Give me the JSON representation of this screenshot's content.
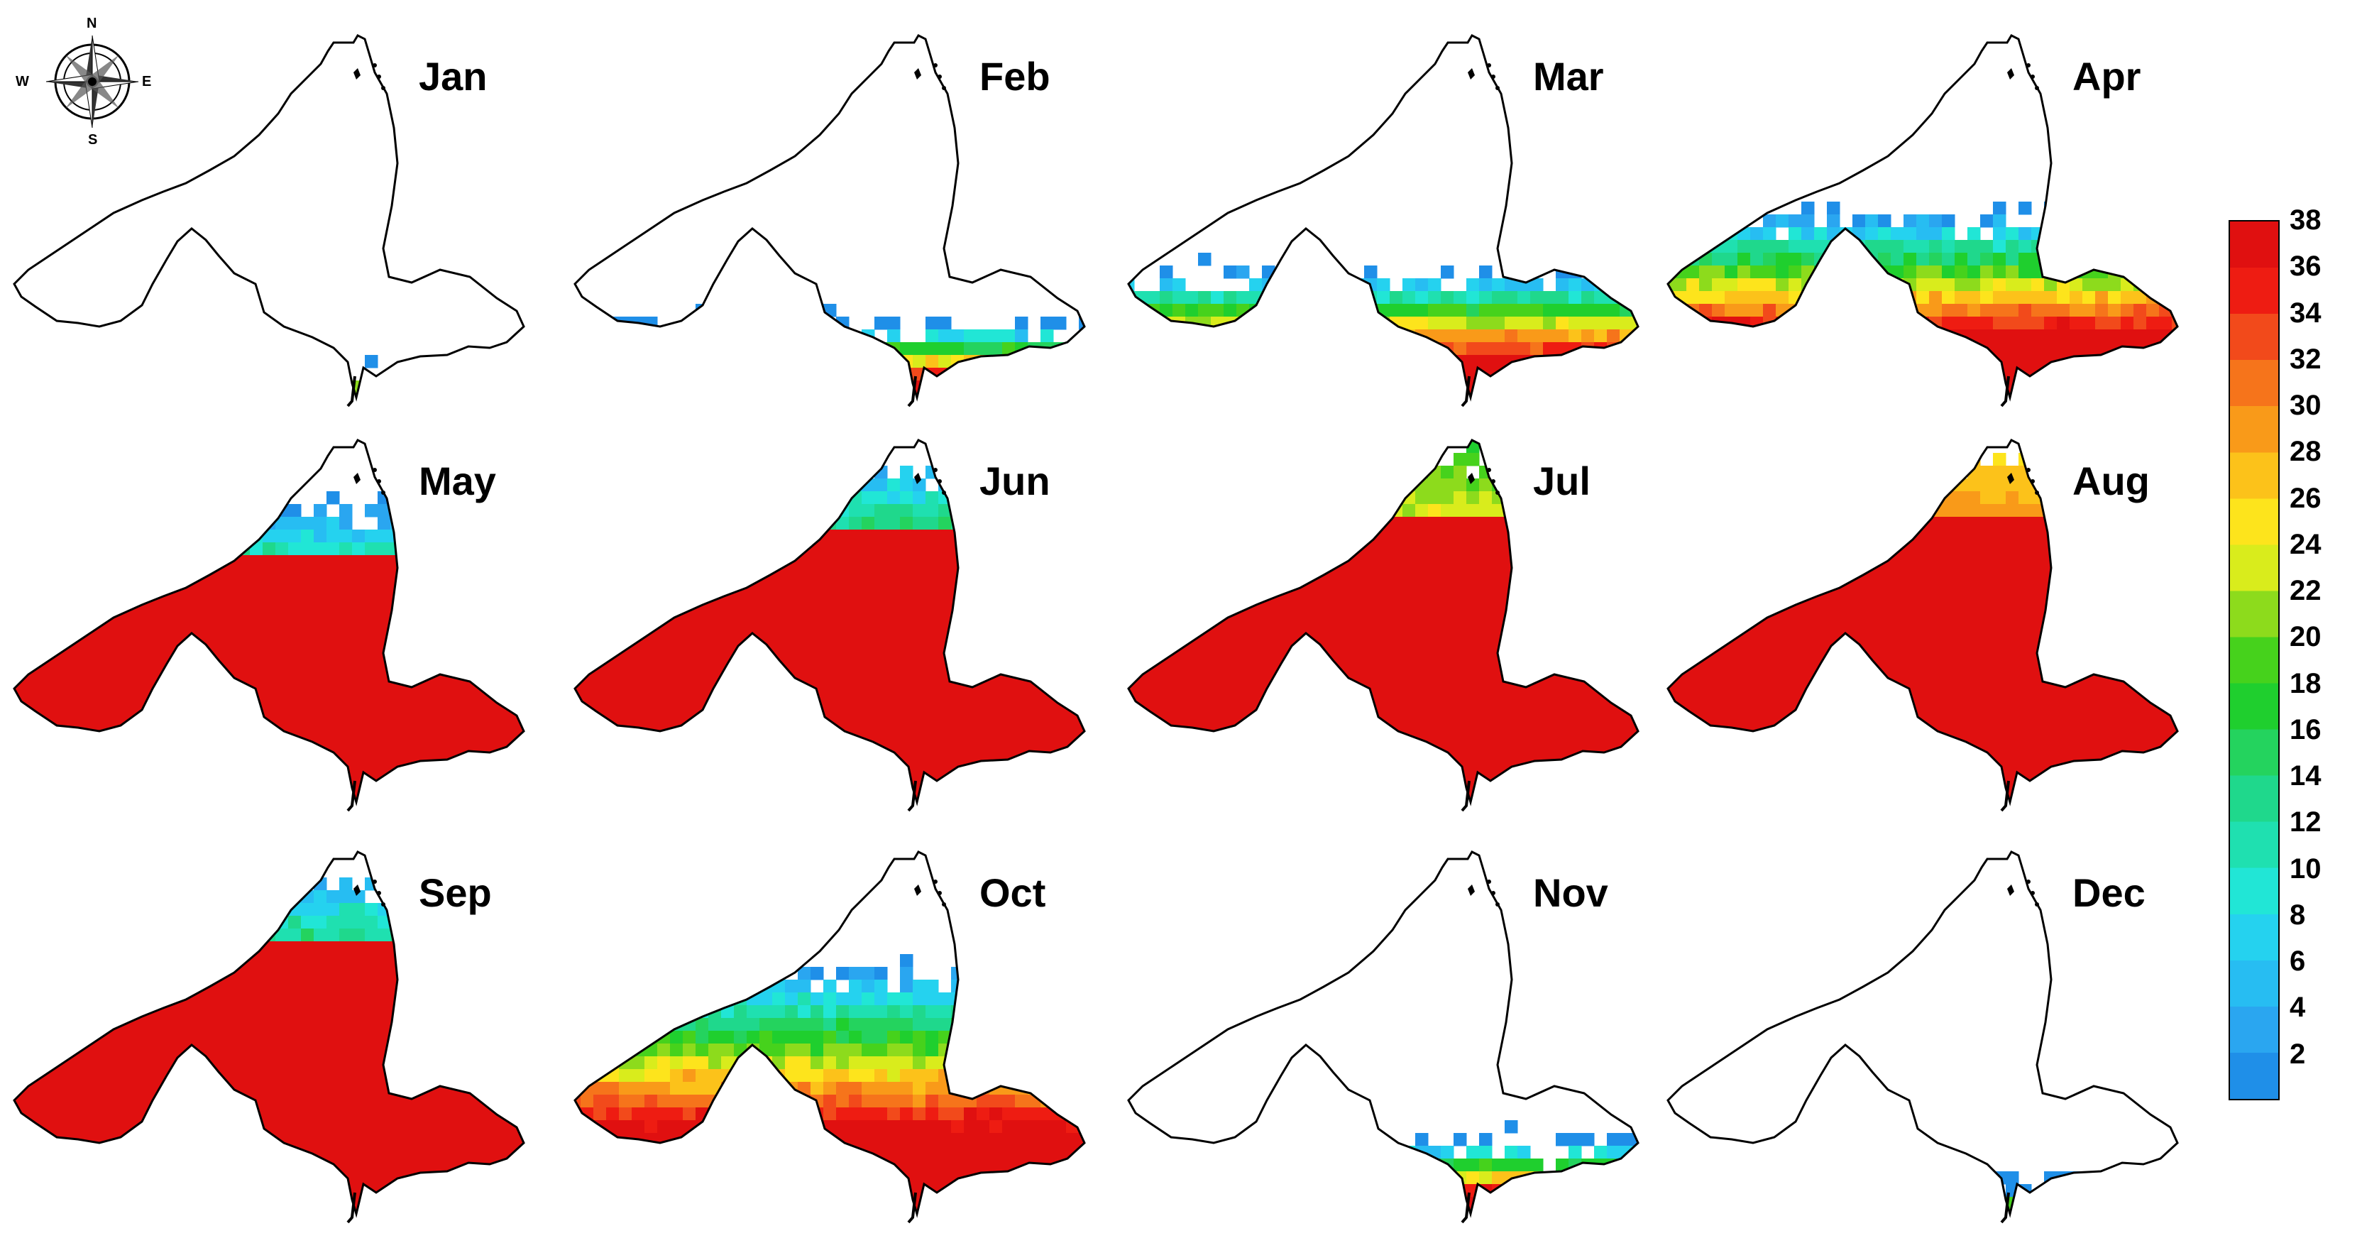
{
  "compass": {
    "north": "N",
    "south": "S",
    "east": "E",
    "west": "W"
  },
  "colors": {
    "outline": "#000000",
    "scale": [
      "#1f8fe8",
      "#2aa6f0",
      "#27bdf2",
      "#25d2ef",
      "#21e6d6",
      "#1fe0b0",
      "#1fd88c",
      "#24d35e",
      "#1fcf2e",
      "#46d21c",
      "#8ddb1c",
      "#d9ec1c",
      "#fde41c",
      "#fcc21a",
      "#f99a19",
      "#f6741b",
      "#f24a1b",
      "#ee1c12",
      "#e01010"
    ]
  },
  "legend": {
    "ticks": [
      "38",
      "36",
      "34",
      "32",
      "30",
      "28",
      "26",
      "24",
      "22",
      "20",
      "18",
      "16",
      "14",
      "12",
      "10",
      "8",
      "6",
      "4",
      "2"
    ],
    "min": 0,
    "max": 38
  },
  "months": [
    {
      "label": "Jan",
      "coverage": 0.1,
      "min_value": 2,
      "max_value": 32
    },
    {
      "label": "Feb",
      "coverage": 0.22,
      "min_value": 2,
      "max_value": 38
    },
    {
      "label": "Mar",
      "coverage": 0.36,
      "min_value": 2,
      "max_value": 38
    },
    {
      "label": "Apr",
      "coverage": 0.52,
      "min_value": 2,
      "max_value": 38
    },
    {
      "label": "May",
      "coverage": 0.82,
      "min_value": 2,
      "max_value": 38
    },
    {
      "label": "Jun",
      "coverage": 0.93,
      "min_value": 4,
      "max_value": 38
    },
    {
      "label": "Jul",
      "coverage": 0.97,
      "min_value": 18,
      "max_value": 38
    },
    {
      "label": "Aug",
      "coverage": 0.97,
      "min_value": 26,
      "max_value": 38
    },
    {
      "label": "Sep",
      "coverage": 0.92,
      "min_value": 4,
      "max_value": 38
    },
    {
      "label": "Oct",
      "coverage": 0.68,
      "min_value": 2,
      "max_value": 38
    },
    {
      "label": "Nov",
      "coverage": 0.22,
      "min_value": 2,
      "max_value": 38
    },
    {
      "label": "Dec",
      "coverage": 0.1,
      "min_value": 2,
      "max_value": 32
    }
  ]
}
